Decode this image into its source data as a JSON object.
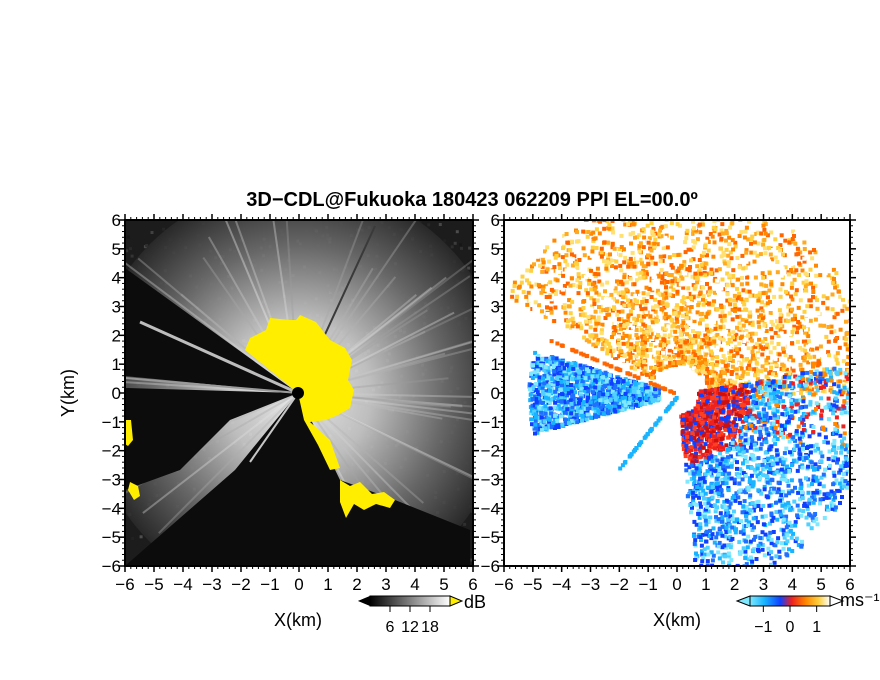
{
  "chart_data": {
    "type": "heatmap",
    "title": "3D−CDL@Fukuoka 180423 062209 PPI EL=00.0º",
    "panels": [
      {
        "id": "snr",
        "xlabel": "X(km)",
        "ylabel": "Y(km)",
        "xlim": [
          -6,
          6
        ],
        "ylim": [
          -6,
          6
        ],
        "x_ticks": [
          "−6",
          "−5",
          "−4",
          "−3",
          "−2",
          "−1",
          "0",
          "1",
          "2",
          "3",
          "4",
          "5",
          "6"
        ],
        "y_ticks": [
          "6",
          "5",
          "4",
          "3",
          "2",
          "1",
          "0",
          "−1",
          "−2",
          "−3",
          "−4",
          "−5",
          "−6"
        ],
        "colorbar": {
          "unit": "dB",
          "tick_labels": [
            "6",
            "12",
            "18"
          ],
          "tick_values": [
            6,
            12,
            18
          ],
          "range": [
            0,
            24
          ],
          "colormap": "grayscale",
          "overflow_color": "#ffee00",
          "underflow_color": "#000000"
        }
      },
      {
        "id": "velocity",
        "xlabel": "X(km)",
        "ylabel": "",
        "xlim": [
          -6,
          6
        ],
        "ylim": [
          -6,
          6
        ],
        "x_ticks": [
          "−6",
          "−5",
          "−4",
          "−3",
          "−2",
          "−1",
          "0",
          "1",
          "2",
          "3",
          "4",
          "5",
          "6"
        ],
        "y_ticks": [
          "6",
          "5",
          "4",
          "3",
          "2",
          "1",
          "0",
          "−1",
          "−2",
          "−3",
          "−4",
          "−5",
          "−6"
        ],
        "colorbar": {
          "unit": "ms⁻¹",
          "tick_labels": [
            "−1",
            "0",
            "1"
          ],
          "tick_values": [
            -1,
            0,
            1
          ],
          "range": [
            -1.5,
            1.5
          ],
          "colormap": "cyan-blue-red-orange-white",
          "colors": [
            "#7fe8ff",
            "#19b4ff",
            "#1040ff",
            "#ee2020",
            "#ff8800",
            "#ffd040",
            "#ffffff"
          ]
        }
      }
    ]
  }
}
